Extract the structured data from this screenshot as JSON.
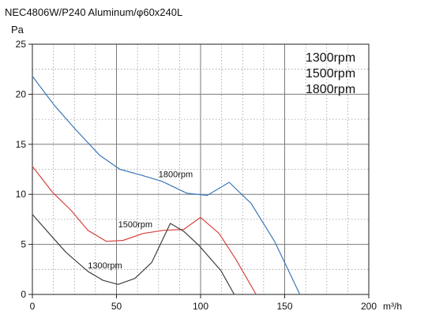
{
  "chart_data": {
    "type": "line",
    "title": "NEC4806W/P240 Aluminum/φ60x240L",
    "ylabel": "Pa",
    "xlabel": "m³/h",
    "xlim": [
      0,
      200
    ],
    "ylim": [
      0,
      25
    ],
    "x_ticks": [
      0,
      50,
      100,
      150,
      200
    ],
    "y_ticks": [
      0,
      5,
      10,
      15,
      20,
      25
    ],
    "grid": "minor-dotted, major-solid",
    "legend": [
      "1300rpm",
      "1500rpm",
      "1800rpm"
    ],
    "legend_position": "top-right",
    "series": [
      {
        "name": "1800rpm",
        "color": "#3b78b8",
        "points": [
          [
            0,
            21.8
          ],
          [
            13,
            18.9
          ],
          [
            25,
            16.6
          ],
          [
            40,
            13.9
          ],
          [
            52,
            12.5
          ],
          [
            65,
            11.9
          ],
          [
            77,
            11.3
          ],
          [
            92,
            10.1
          ],
          [
            104,
            9.9
          ],
          [
            117,
            11.2
          ],
          [
            130,
            9.1
          ],
          [
            144,
            5.3
          ],
          [
            159,
            0
          ]
        ],
        "label_at": [
          75,
          11.7
        ]
      },
      {
        "name": "1500rpm",
        "color": "#d9423f",
        "points": [
          [
            0,
            12.8
          ],
          [
            12,
            10.2
          ],
          [
            23,
            8.4
          ],
          [
            33,
            6.4
          ],
          [
            44,
            5.3
          ],
          [
            54,
            5.4
          ],
          [
            66,
            6.1
          ],
          [
            78,
            6.4
          ],
          [
            90,
            6.5
          ],
          [
            100,
            7.7
          ],
          [
            111,
            6.1
          ],
          [
            121,
            3.5
          ],
          [
            133,
            0
          ]
        ],
        "label_at": [
          51,
          6.7
        ]
      },
      {
        "name": "1300rpm",
        "color": "#404040",
        "points": [
          [
            0,
            8.0
          ],
          [
            12,
            5.7
          ],
          [
            20,
            4.2
          ],
          [
            33,
            2.3
          ],
          [
            42,
            1.4
          ],
          [
            51,
            1.0
          ],
          [
            61,
            1.6
          ],
          [
            71,
            3.2
          ],
          [
            82,
            7.1
          ],
          [
            90,
            6.3
          ],
          [
            99,
            4.9
          ],
          [
            112,
            2.4
          ],
          [
            120,
            0
          ]
        ],
        "label_at": [
          33,
          2.6
        ]
      }
    ]
  }
}
